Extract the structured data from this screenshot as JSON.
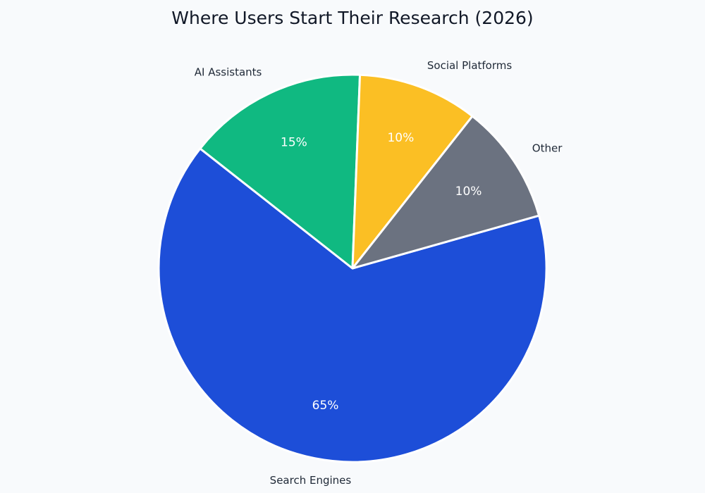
{
  "chart_data": {
    "type": "pie",
    "title": "Where Users Start Their Research (2026)",
    "start_angle_deg": 0,
    "direction": "clockwise",
    "slices": [
      {
        "label": "Search Engines",
        "value": 65,
        "display": "65%",
        "color": "#1d4ed8"
      },
      {
        "label": "AI Assistants",
        "value": 15,
        "display": "15%",
        "color": "#10b981"
      },
      {
        "label": "Social Platforms",
        "value": 10,
        "display": "10%",
        "color": "#fbbf24"
      },
      {
        "label": "Other",
        "value": 10,
        "display": "10%",
        "color": "#6b7280"
      }
    ]
  }
}
